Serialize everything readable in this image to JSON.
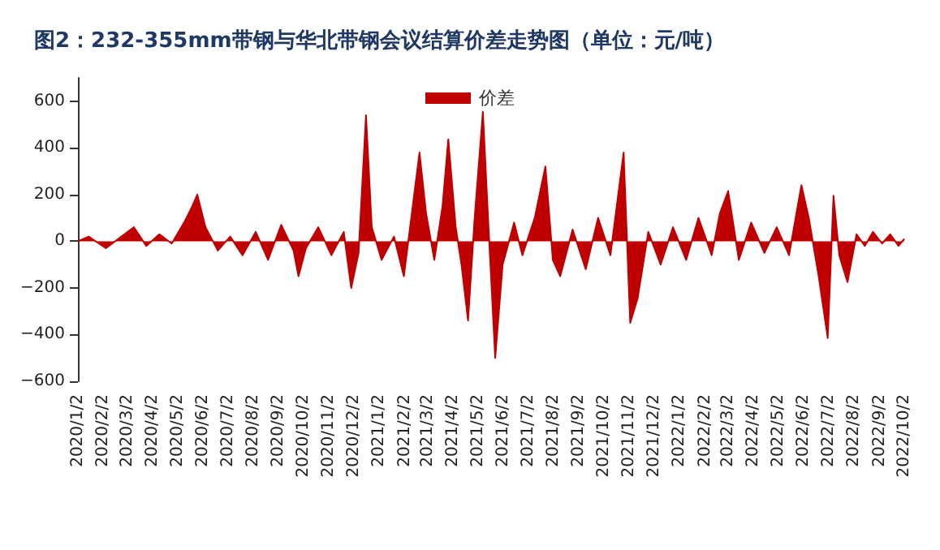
{
  "chart_data": {
    "type": "area",
    "title": "图2：232-355mm带钢与华北带钢会议结算价差走势图（单位：元/吨）",
    "x": [
      "2020-01-02",
      "2020-01-15",
      "2020-02-05",
      "2020-02-20",
      "2020-03-10",
      "2020-03-25",
      "2020-04-10",
      "2020-04-25",
      "2020-05-10",
      "2020-05-20",
      "2020-05-26",
      "2020-06-05",
      "2020-06-20",
      "2020-07-05",
      "2020-07-20",
      "2020-08-05",
      "2020-08-20",
      "2020-09-05",
      "2020-09-20",
      "2020-09-26",
      "2020-10-05",
      "2020-10-20",
      "2020-11-05",
      "2020-11-20",
      "2020-11-29",
      "2020-12-08",
      "2020-12-17",
      "2020-12-24",
      "2021-01-05",
      "2021-01-20",
      "2021-02-01",
      "2021-02-10",
      "2021-02-20",
      "2021-02-28",
      "2021-03-10",
      "2021-03-20",
      "2021-03-27",
      "2021-04-05",
      "2021-04-12",
      "2021-04-20",
      "2021-04-28",
      "2021-05-08",
      "2021-05-15",
      "2021-05-23",
      "2021-06-01",
      "2021-06-15",
      "2021-06-25",
      "2021-07-10",
      "2021-07-23",
      "2021-08-01",
      "2021-08-10",
      "2021-08-25",
      "2021-09-10",
      "2021-09-25",
      "2021-10-10",
      "2021-10-26",
      "2021-11-03",
      "2021-11-12",
      "2021-11-25",
      "2021-12-10",
      "2021-12-25",
      "2022-01-10",
      "2022-01-25",
      "2022-02-10",
      "2022-02-20",
      "2022-03-02",
      "2022-03-15",
      "2022-03-30",
      "2022-04-15",
      "2022-04-30",
      "2022-05-15",
      "2022-05-30",
      "2022-06-08",
      "2022-06-20",
      "2022-07-01",
      "2022-07-08",
      "2022-07-15",
      "2022-07-25",
      "2022-08-05",
      "2022-08-15",
      "2022-08-25",
      "2022-09-05",
      "2022-09-15",
      "2022-09-25",
      "2022-10-02"
    ],
    "series": [
      {
        "name": "价差",
        "color": "#c00000",
        "values": [
          0,
          20,
          -30,
          10,
          60,
          -20,
          30,
          -10,
          80,
          150,
          200,
          60,
          -40,
          20,
          -60,
          40,
          -80,
          70,
          -40,
          -150,
          -30,
          60,
          -60,
          40,
          -200,
          -50,
          540,
          60,
          -80,
          20,
          -150,
          100,
          380,
          120,
          -80,
          150,
          437,
          60,
          -100,
          -340,
          100,
          555,
          50,
          -500,
          -100,
          80,
          -60,
          100,
          320,
          -80,
          -150,
          50,
          -120,
          100,
          -60,
          380,
          -350,
          -245,
          40,
          -100,
          60,
          -80,
          100,
          -60,
          120,
          215,
          -80,
          80,
          -50,
          60,
          -60,
          240,
          100,
          -150,
          -415,
          195,
          -60,
          -175,
          30,
          -20,
          40,
          -10,
          30,
          -20,
          10
        ]
      }
    ],
    "xlim": [
      "2020-01-02",
      "2022-10-02"
    ],
    "xticks": [
      {
        "value": "2020-01-02",
        "label": "2020/1/2"
      },
      {
        "value": "2020-02-02",
        "label": "2020/2/2"
      },
      {
        "value": "2020-03-02",
        "label": "2020/3/2"
      },
      {
        "value": "2020-04-02",
        "label": "2020/4/2"
      },
      {
        "value": "2020-05-02",
        "label": "2020/5/2"
      },
      {
        "value": "2020-06-02",
        "label": "2020/6/2"
      },
      {
        "value": "2020-07-02",
        "label": "2020/7/2"
      },
      {
        "value": "2020-08-02",
        "label": "2020/8/2"
      },
      {
        "value": "2020-09-02",
        "label": "2020/9/2"
      },
      {
        "value": "2020-10-02",
        "label": "2020/10/2"
      },
      {
        "value": "2020-11-02",
        "label": "2020/11/2"
      },
      {
        "value": "2020-12-02",
        "label": "2020/12/2"
      },
      {
        "value": "2021-01-02",
        "label": "2021/1/2"
      },
      {
        "value": "2021-02-02",
        "label": "2021/2/2"
      },
      {
        "value": "2021-03-02",
        "label": "2021/3/2"
      },
      {
        "value": "2021-04-02",
        "label": "2021/4/2"
      },
      {
        "value": "2021-05-02",
        "label": "2021/5/2"
      },
      {
        "value": "2021-06-02",
        "label": "2021/6/2"
      },
      {
        "value": "2021-07-02",
        "label": "2021/7/2"
      },
      {
        "value": "2021-08-02",
        "label": "2021/8/2"
      },
      {
        "value": "2021-09-02",
        "label": "2021/9/2"
      },
      {
        "value": "2021-10-02",
        "label": "2021/10/2"
      },
      {
        "value": "2021-11-02",
        "label": "2021/11/2"
      },
      {
        "value": "2021-12-02",
        "label": "2021/12/2"
      },
      {
        "value": "2022-01-02",
        "label": "2022/1/2"
      },
      {
        "value": "2022-02-02",
        "label": "2022/2/2"
      },
      {
        "value": "2022-03-02",
        "label": "2022/3/2"
      },
      {
        "value": "2022-04-02",
        "label": "2022/4/2"
      },
      {
        "value": "2022-05-02",
        "label": "2022/5/2"
      },
      {
        "value": "2022-06-02",
        "label": "2022/6/2"
      },
      {
        "value": "2022-07-02",
        "label": "2022/7/2"
      },
      {
        "value": "2022-08-02",
        "label": "2022/8/2"
      },
      {
        "value": "2022-09-02",
        "label": "2022/9/2"
      },
      {
        "value": "2022-10-02",
        "label": "2022/10/2"
      }
    ],
    "ylim": [
      -600,
      700
    ],
    "yticks": [
      -600,
      -400,
      -200,
      0,
      200,
      400,
      600
    ],
    "legend": "top",
    "grid": false,
    "marker": "none"
  }
}
